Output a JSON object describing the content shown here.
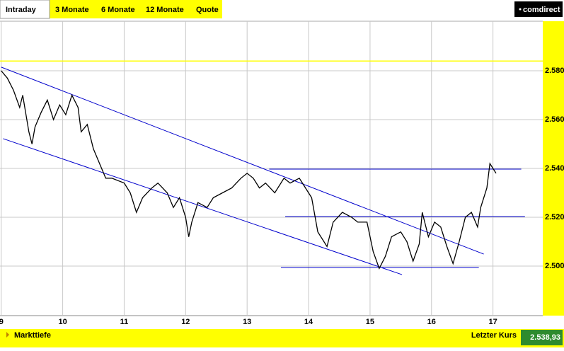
{
  "ui": {
    "tabs": [
      "Intraday",
      "3 Monate",
      "6 Monate",
      "12 Monate",
      "Quote"
    ],
    "logo": "comdirect",
    "footer_left": "Markttiefe",
    "footer_label": "Letzter Kurs",
    "last_price": "2.538,93"
  },
  "chart_data": {
    "type": "line",
    "x": [
      9.0,
      9.1,
      9.2,
      9.3,
      9.35,
      9.45,
      9.5,
      9.55,
      9.65,
      9.75,
      9.85,
      9.95,
      10.05,
      10.15,
      10.25,
      10.3,
      10.4,
      10.5,
      10.6,
      10.7,
      10.8,
      11.0,
      11.1,
      11.2,
      11.3,
      11.45,
      11.55,
      11.7,
      11.8,
      11.9,
      12.0,
      12.05,
      12.1,
      12.2,
      12.35,
      12.45,
      12.6,
      12.75,
      12.9,
      13.0,
      13.1,
      13.2,
      13.3,
      13.45,
      13.6,
      13.7,
      13.85,
      13.95,
      14.05,
      14.15,
      14.3,
      14.4,
      14.55,
      14.7,
      14.8,
      14.95,
      15.05,
      15.15,
      15.25,
      15.35,
      15.5,
      15.6,
      15.7,
      15.8,
      15.85,
      15.95,
      16.05,
      16.15,
      16.25,
      16.35,
      16.45,
      16.55,
      16.65,
      16.75,
      16.8,
      16.9,
      16.95,
      17.05
    ],
    "series": [
      {
        "color": "#000000",
        "values": [
          2.58,
          2.577,
          2.572,
          2.565,
          2.57,
          2.555,
          2.55,
          2.557,
          2.563,
          2.568,
          2.56,
          2.566,
          2.562,
          2.57,
          2.565,
          2.555,
          2.558,
          2.548,
          2.542,
          2.536,
          2.536,
          2.534,
          2.53,
          2.522,
          2.528,
          2.532,
          2.534,
          2.53,
          2.524,
          2.528,
          2.52,
          2.512,
          2.518,
          2.526,
          2.524,
          2.528,
          2.53,
          2.532,
          2.536,
          2.538,
          2.536,
          2.532,
          2.534,
          2.53,
          2.536,
          2.534,
          2.536,
          2.532,
          2.528,
          2.514,
          2.508,
          2.518,
          2.522,
          2.52,
          2.518,
          2.518,
          2.506,
          2.499,
          2.504,
          2.512,
          2.514,
          2.51,
          2.502,
          2.509,
          2.522,
          2.512,
          2.518,
          2.516,
          2.508,
          2.501,
          2.51,
          2.52,
          2.522,
          2.516,
          2.524,
          2.532,
          2.542,
          2.538
        ]
      }
    ],
    "lines": [
      {
        "color": "#0000cc",
        "x": [
          9.0,
          16.85
        ],
        "y": [
          2.5815,
          2.5049
        ]
      },
      {
        "color": "#0000cc",
        "x": [
          9.03,
          15.52
        ],
        "y": [
          2.5522,
          2.4965
        ]
      },
      {
        "color": "#0000cc",
        "x": [
          13.36,
          17.46
        ],
        "y": [
          2.5397,
          2.5397
        ]
      },
      {
        "color": "#0000cc",
        "x": [
          13.62,
          17.52
        ],
        "y": [
          2.5203,
          2.5203
        ]
      },
      {
        "color": "#0000cc",
        "x": [
          13.55,
          16.77
        ],
        "y": [
          2.4994,
          2.4994
        ]
      }
    ],
    "reference_line": {
      "value": 2.584,
      "color": "#ffff00"
    },
    "xlim": [
      8.98,
      17.81
    ],
    "xticks": [
      9,
      10,
      11,
      12,
      13,
      14,
      15,
      16,
      17
    ],
    "ylim": [
      2.4797,
      2.6003
    ],
    "yticks": [
      {
        "value": 2.5,
        "label": "2.500"
      },
      {
        "value": 2.52,
        "label": "2.520"
      },
      {
        "value": 2.54,
        "label": "2.540"
      },
      {
        "value": 2.56,
        "label": "2.560"
      },
      {
        "value": 2.58,
        "label": "2.580"
      }
    ],
    "grid": true
  }
}
